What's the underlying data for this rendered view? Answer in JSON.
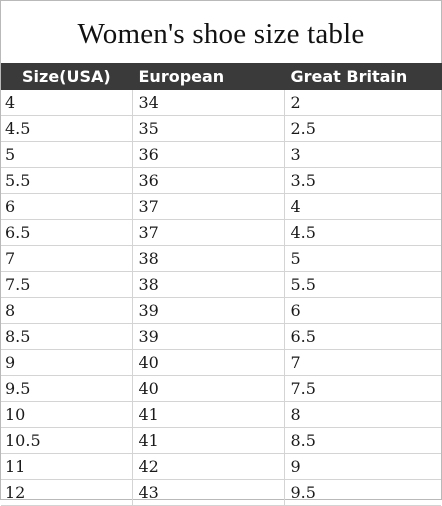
{
  "title": "Women's shoe size table",
  "headers": [
    "Size(USA)",
    "European",
    "Great Britain"
  ],
  "rows": [
    [
      "4",
      "34",
      "2"
    ],
    [
      "4.5",
      "35",
      "2.5"
    ],
    [
      "5",
      "36",
      "3"
    ],
    [
      "5.5",
      "36",
      "3.5"
    ],
    [
      "6",
      "37",
      "4"
    ],
    [
      "6.5",
      "37",
      "4.5"
    ],
    [
      "7",
      "38",
      "5"
    ],
    [
      "7.5",
      "38",
      "5.5"
    ],
    [
      "8",
      "39",
      "6"
    ],
    [
      "8.5",
      "39",
      "6.5"
    ],
    [
      "9",
      "40",
      "7"
    ],
    [
      "9.5",
      "40",
      "7.5"
    ],
    [
      "10",
      "41",
      "8"
    ],
    [
      "10.5",
      "41",
      "8.5"
    ],
    [
      "11",
      "42",
      "9"
    ],
    [
      "12",
      "43",
      "9.5"
    ]
  ],
  "colors": {
    "header_bg": "#3a3a3a",
    "header_text": "#ffffff",
    "grid_line": "#d4d4d4"
  }
}
